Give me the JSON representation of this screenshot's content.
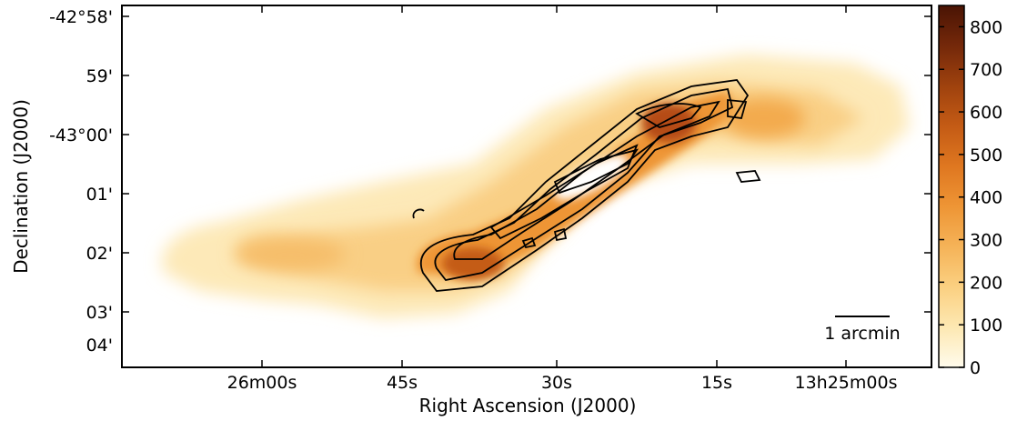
{
  "chart_data": {
    "type": "heatmap",
    "xlabel": "Right Ascension (J2000)",
    "ylabel": "Declination (J2000)",
    "x_ticks": [
      "26m00s",
      "45s",
      "30s",
      "15s",
      "13h25m00s"
    ],
    "y_ticks": [
      "-42°58'",
      "59'",
      "-43°00'",
      "01'",
      "02'",
      "03'",
      "04'"
    ],
    "colorbar": {
      "ticks": [
        "0",
        "100",
        "200",
        "300",
        "400",
        "500",
        "600",
        "700",
        "800"
      ],
      "range": [
        0,
        850
      ],
      "colors": [
        "#fffbec",
        "#fde8b2",
        "#fbd081",
        "#f5b358",
        "#ee9535",
        "#df7720",
        "#c45b15",
        "#9f420e",
        "#74280a",
        "#4a1404"
      ]
    },
    "scalebar_label": "1 arcmin",
    "contours": "black contour lines overlaid on the central ridge",
    "emission_peak_value": 850
  }
}
